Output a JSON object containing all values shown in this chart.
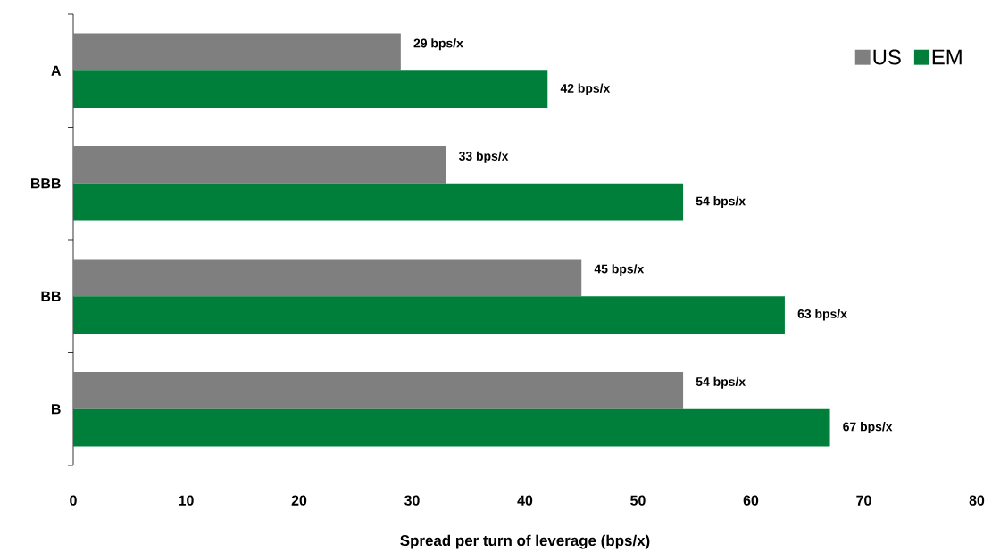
{
  "chart_data": {
    "type": "bar",
    "orientation": "horizontal",
    "xlabel": "Spread per turn of leverage (bps/x)",
    "categories": [
      "A",
      "BBB",
      "BB",
      "B"
    ],
    "series": [
      {
        "name": "US",
        "color": "#7f7f7f",
        "values": [
          29,
          33,
          45,
          54
        ],
        "value_labels": [
          "29 bps/x",
          "33 bps/x",
          "45 bps/x",
          "54 bps/x"
        ]
      },
      {
        "name": "EM",
        "color": "#007f3a",
        "values": [
          42,
          54,
          63,
          67
        ],
        "value_labels": [
          "42 bps/x",
          "54 bps/x",
          "63 bps/x",
          "67 bps/x"
        ]
      }
    ],
    "xlim": [
      0,
      80
    ],
    "xticks": [
      0,
      10,
      20,
      30,
      40,
      50,
      60,
      70,
      80
    ],
    "legend": "top right"
  }
}
